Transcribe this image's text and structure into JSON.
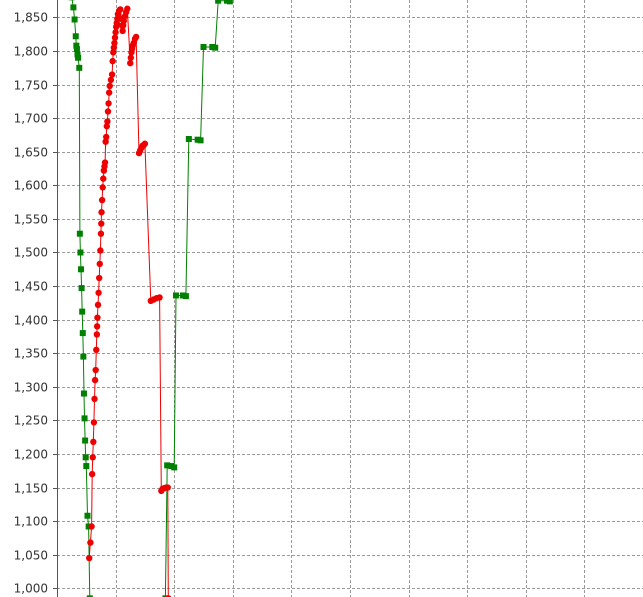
{
  "chart_data": {
    "type": "line",
    "title": "",
    "xlabel": "",
    "ylabel": "",
    "ylim": [
      987,
      1876
    ],
    "xlim": [
      0,
      100
    ],
    "grid": true,
    "y_ticks": [
      "1,000",
      "1,050",
      "1,100",
      "1,150",
      "1,200",
      "1,250",
      "1,300",
      "1,350",
      "1,400",
      "1,450",
      "1,500",
      "1,550",
      "1,600",
      "1,650",
      "1,700",
      "1,750",
      "1,800",
      "1,850"
    ],
    "y_tick_values": [
      1000,
      1050,
      1100,
      1150,
      1200,
      1250,
      1300,
      1350,
      1400,
      1450,
      1500,
      1550,
      1600,
      1650,
      1700,
      1750,
      1800,
      1850
    ],
    "x_grid": [
      10,
      20,
      30,
      40,
      50,
      60,
      70,
      80,
      90,
      100
    ],
    "series": [
      {
        "color": "#008000",
        "marker": "square",
        "points": [
          [
            2.5,
            1880
          ],
          [
            2.8,
            1865
          ],
          [
            3.0,
            1847
          ],
          [
            3.2,
            1822
          ],
          [
            3.3,
            1808
          ],
          [
            3.4,
            1803
          ],
          [
            3.5,
            1795
          ],
          [
            3.6,
            1790
          ],
          [
            3.8,
            1775
          ],
          [
            3.9,
            1528
          ],
          [
            4.0,
            1500
          ],
          [
            4.1,
            1475
          ],
          [
            4.2,
            1447
          ],
          [
            4.3,
            1412
          ],
          [
            4.4,
            1380
          ],
          [
            4.5,
            1345
          ],
          [
            4.6,
            1290
          ],
          [
            4.7,
            1253
          ],
          [
            4.8,
            1220
          ],
          [
            4.9,
            1195
          ],
          [
            5.0,
            1182
          ],
          [
            5.2,
            1108
          ],
          [
            5.4,
            1092
          ],
          [
            5.6,
            985
          ],
          [
            18.5,
            985
          ],
          [
            18.8,
            1183
          ],
          [
            19.5,
            1182
          ],
          [
            20.0,
            1180
          ],
          [
            20.3,
            1436
          ],
          [
            21.5,
            1436
          ],
          [
            22.0,
            1435
          ],
          [
            22.5,
            1669
          ],
          [
            24.0,
            1668
          ],
          [
            24.5,
            1667
          ],
          [
            25.0,
            1806
          ],
          [
            26.5,
            1806
          ],
          [
            27.0,
            1805
          ],
          [
            27.5,
            1875
          ],
          [
            29.0,
            1875
          ],
          [
            29.5,
            1874
          ]
        ]
      },
      {
        "color": "#ee0000",
        "marker": "circle",
        "points": [
          [
            5.5,
            1045
          ],
          [
            5.7,
            1068
          ],
          [
            5.9,
            1092
          ],
          [
            6.0,
            1170
          ],
          [
            6.1,
            1195
          ],
          [
            6.2,
            1218
          ],
          [
            6.3,
            1247
          ],
          [
            6.4,
            1282
          ],
          [
            6.5,
            1310
          ],
          [
            6.6,
            1325
          ],
          [
            6.7,
            1355
          ],
          [
            6.8,
            1378
          ],
          [
            6.85,
            1390
          ],
          [
            6.9,
            1403
          ],
          [
            7.0,
            1422
          ],
          [
            7.1,
            1440
          ],
          [
            7.2,
            1462
          ],
          [
            7.3,
            1483
          ],
          [
            7.4,
            1503
          ],
          [
            7.5,
            1528
          ],
          [
            7.55,
            1543
          ],
          [
            7.6,
            1560
          ],
          [
            7.7,
            1578
          ],
          [
            7.8,
            1597
          ],
          [
            7.9,
            1610
          ],
          [
            8.0,
            1622
          ],
          [
            8.1,
            1628
          ],
          [
            8.2,
            1634
          ],
          [
            8.3,
            1665
          ],
          [
            8.4,
            1672
          ],
          [
            8.5,
            1688
          ],
          [
            8.6,
            1695
          ],
          [
            8.7,
            1710
          ],
          [
            8.8,
            1722
          ],
          [
            8.9,
            1738
          ],
          [
            9.0,
            1748
          ],
          [
            9.2,
            1757
          ],
          [
            9.4,
            1765
          ],
          [
            9.5,
            1785
          ],
          [
            9.6,
            1798
          ],
          [
            9.7,
            1805
          ],
          [
            9.8,
            1812
          ],
          [
            9.9,
            1820
          ],
          [
            10.0,
            1828
          ],
          [
            10.1,
            1836
          ],
          [
            10.2,
            1842
          ],
          [
            10.3,
            1848
          ],
          [
            10.4,
            1855
          ],
          [
            10.6,
            1860
          ],
          [
            10.8,
            1862
          ],
          [
            11.0,
            1848
          ],
          [
            11.1,
            1838
          ],
          [
            11.2,
            1830
          ],
          [
            11.3,
            1838
          ],
          [
            11.4,
            1845
          ],
          [
            11.6,
            1852
          ],
          [
            11.8,
            1858
          ],
          [
            12.0,
            1863
          ],
          [
            12.5,
            1782
          ],
          [
            12.6,
            1790
          ],
          [
            12.7,
            1798
          ],
          [
            12.8,
            1803
          ],
          [
            12.9,
            1808
          ],
          [
            13.1,
            1812
          ],
          [
            13.3,
            1818
          ],
          [
            13.5,
            1821
          ],
          [
            14.0,
            1648
          ],
          [
            14.2,
            1652
          ],
          [
            14.4,
            1656
          ],
          [
            14.6,
            1659
          ],
          [
            14.8,
            1660
          ],
          [
            15.0,
            1662
          ],
          [
            16.0,
            1428
          ],
          [
            16.5,
            1430
          ],
          [
            17.0,
            1432
          ],
          [
            17.5,
            1433
          ],
          [
            17.8,
            1145
          ],
          [
            18.0,
            1148
          ],
          [
            18.3,
            1149
          ],
          [
            18.6,
            1150
          ],
          [
            18.9,
            1150
          ],
          [
            19.0,
            985
          ]
        ]
      }
    ]
  }
}
